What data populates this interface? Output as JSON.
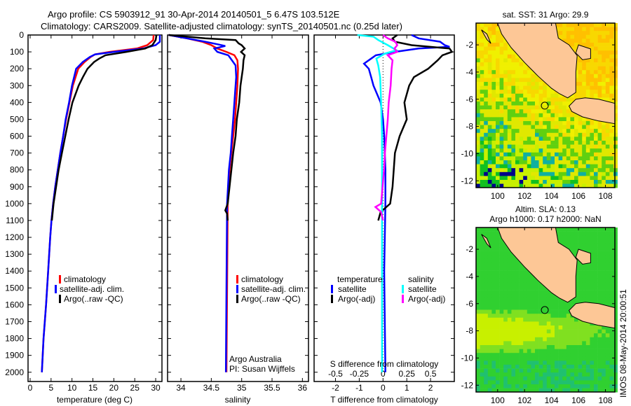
{
  "title": {
    "line1": "Argo profile: CS 5903912_91 30-Apr-2014 20140501_5 6.47S 103.512E",
    "line2": "Climatology: CARS2009. Satellite-adjusted climatology: synTS_20140501.nc (0.25d later)"
  },
  "colors": {
    "climatology": "#ff0000",
    "satellite": "#0000ff",
    "argo": "#000000",
    "sal_sat": "#00ffff",
    "sal_argo": "#ff00ff",
    "land": "#fdc796"
  },
  "chart_data": [
    {
      "type": "line",
      "id": "temperature",
      "xlabel": "temperature (deg C)",
      "ylabel": "",
      "xlim": [
        -0.5,
        31.5
      ],
      "ylim": [
        2055,
        0
      ],
      "xticks": [
        "0",
        "5",
        "10",
        "15",
        "20",
        "25",
        "30"
      ],
      "xtick_values": [
        0,
        5,
        10,
        15,
        20,
        25,
        30
      ],
      "yticks": [
        "0",
        "100",
        "200",
        "300",
        "400",
        "500",
        "600",
        "700",
        "800",
        "900",
        "1000",
        "1100",
        "1200",
        "1300",
        "1400",
        "1500",
        "1600",
        "1700",
        "1800",
        "1900",
        "2000"
      ],
      "legend": [
        "climatology",
        "satellite-adj. clim.",
        "Argo(..raw -QC)"
      ],
      "series": [
        {
          "name": "climatology",
          "color": "#ff0000",
          "depth": [
            0,
            30,
            60,
            80,
            100,
            115,
            130,
            160,
            200,
            300,
            400,
            500,
            600,
            700,
            800,
            900,
            1000,
            1100,
            1200,
            1400,
            1600,
            1800,
            2000
          ],
          "values": [
            29.5,
            29.4,
            28,
            25.5,
            19,
            15.5,
            14.5,
            13,
            11.5,
            10.2,
            9.4,
            8.6,
            7.9,
            7.2,
            6.6,
            6,
            5.5,
            5.1,
            4.8,
            4.3,
            3.8,
            3.2,
            2.8
          ]
        },
        {
          "name": "satellite-adj. clim.",
          "color": "#0000ff",
          "depth": [
            0,
            40,
            60,
            80,
            100,
            115,
            130,
            160,
            200,
            300,
            400,
            500,
            600,
            700,
            800,
            900,
            1000,
            1100,
            1200,
            1400,
            1600,
            1800,
            2000
          ],
          "values": [
            31,
            31,
            30,
            27,
            20,
            15.5,
            14.3,
            12.6,
            11,
            10,
            9.3,
            8.5,
            7.9,
            7.2,
            6.6,
            6,
            5.5,
            5.1,
            4.8,
            4.3,
            3.8,
            3.2,
            2.8
          ]
        },
        {
          "name": "Argo(..raw -QC)",
          "color": "#000000",
          "depth": [
            0,
            30,
            60,
            80,
            100,
            120,
            140,
            160,
            200,
            250,
            300,
            400,
            500,
            600,
            700,
            800,
            900,
            1000,
            1100
          ],
          "values": [
            30.2,
            30,
            29.2,
            27.5,
            23,
            18,
            16.5,
            15.3,
            13.7,
            12.6,
            11.6,
            10.1,
            9.2,
            8.4,
            7.6,
            6.8,
            6.2,
            5.6,
            5.2
          ]
        }
      ]
    },
    {
      "type": "line",
      "id": "salinity",
      "xlabel": "salinity",
      "xlim": [
        33.78,
        36.1
      ],
      "ylim": [
        2055,
        0
      ],
      "xticks": [
        "34",
        "34.5",
        "35",
        "35.5",
        "36"
      ],
      "xtick_values": [
        34,
        34.5,
        35,
        35.5,
        36
      ],
      "legend": [
        "climatology",
        "satellite-adj. clim.",
        "Argo(..raw -QC)"
      ],
      "annotation": [
        "Argo Australia",
        "PI: Susan Wijffels"
      ],
      "series": [
        {
          "name": "climatology",
          "color": "#ff0000",
          "depth": [
            0,
            20,
            40,
            60,
            80,
            100,
            120,
            150,
            200,
            300,
            400,
            500,
            600,
            700,
            800,
            1000,
            1500,
            2000
          ],
          "values": [
            33.8,
            34.1,
            34.35,
            34.5,
            34.6,
            34.75,
            34.88,
            34.93,
            34.94,
            34.93,
            34.91,
            34.89,
            34.86,
            34.83,
            34.8,
            34.77,
            34.76,
            34.75
          ]
        },
        {
          "name": "satellite-adj. clim.",
          "color": "#0000ff",
          "depth": [
            0,
            20,
            40,
            55,
            65,
            80,
            100,
            120,
            150,
            180,
            250,
            300,
            400,
            500,
            600,
            700,
            800,
            1000,
            1500,
            2000
          ],
          "values": [
            33.8,
            34.1,
            34.4,
            34.6,
            34.73,
            34.55,
            34.6,
            34.78,
            34.84,
            34.9,
            34.91,
            34.9,
            34.88,
            34.86,
            34.84,
            34.82,
            34.79,
            34.76,
            34.75,
            34.74
          ]
        },
        {
          "name": "Argo(..raw -QC)",
          "color": "#000000",
          "depth": [
            0,
            10,
            20,
            30,
            50,
            60,
            80,
            100,
            120,
            150,
            200,
            250,
            300,
            400,
            500,
            600,
            700,
            800,
            900,
            1000,
            1040,
            1060,
            1100
          ],
          "values": [
            33.8,
            34.1,
            34.4,
            34.9,
            34.95,
            35.0,
            35.05,
            34.99,
            35.05,
            35.03,
            35.02,
            35.0,
            34.98,
            34.96,
            34.92,
            34.9,
            34.86,
            34.83,
            34.8,
            34.77,
            34.73,
            34.76,
            34.77
          ]
        }
      ]
    },
    {
      "type": "line",
      "id": "difference",
      "xlabel": "T difference from climatology",
      "x2label": "S difference from climatology",
      "xlim": [
        -2.9,
        3.0
      ],
      "ylim": [
        2055,
        0
      ],
      "xticks": [
        "-2",
        "-1",
        "0",
        "1",
        "2"
      ],
      "xtick_values": [
        -2,
        -1,
        0,
        1,
        2
      ],
      "x2ticks": [
        "-0.5",
        "-0.25",
        "0",
        "0.25",
        "0.5"
      ],
      "x2tick_values": [
        -0.5,
        -0.25,
        0,
        0.25,
        0.5
      ],
      "legend_t_title": "temperature",
      "legend_s_title": "salinity",
      "legend": [
        "satellite",
        "Argo(-adj)",
        "satellite",
        "Argo(-adj)"
      ],
      "series": [
        {
          "name": "T satellite",
          "color": "#0000ff",
          "quantity": "T",
          "depth": [
            0,
            20,
            40,
            60,
            70,
            80,
            100,
            120,
            140,
            170,
            200,
            250,
            300,
            400,
            500,
            600,
            800,
            1000,
            1400,
            2000
          ],
          "values": [
            1.2,
            1.5,
            2.4,
            2.6,
            2.8,
            1.5,
            0.5,
            -0.3,
            -0.5,
            -0.8,
            -0.6,
            -0.5,
            -0.4,
            -0.1,
            0,
            0.05,
            0.1,
            0.1,
            0.05,
            0.1
          ]
        },
        {
          "name": "T Argo(-adj)",
          "color": "#000000",
          "quantity": "T",
          "depth": [
            0,
            20,
            40,
            60,
            80,
            100,
            120,
            150,
            200,
            250,
            300,
            400,
            500,
            600,
            700,
            800,
            900,
            1000,
            1050,
            1100
          ],
          "values": [
            0.6,
            0.4,
            0.5,
            1.2,
            2.8,
            2.9,
            2.5,
            2.3,
            1.9,
            1.3,
            1.1,
            0.9,
            1.0,
            0.7,
            0.5,
            0.45,
            0.4,
            0.3,
            -0.1,
            -0.2
          ]
        },
        {
          "name": "S satellite",
          "color": "#00ffff",
          "quantity": "S",
          "depth": [
            0,
            10,
            30,
            60,
            90,
            110,
            140,
            180,
            250,
            400,
            600,
            1000,
            1500,
            2000
          ],
          "values": [
            -0.27,
            -0.1,
            -0.05,
            0.05,
            0.14,
            0.02,
            -0.07,
            -0.05,
            -0.03,
            -0.02,
            -0.01,
            -0.01,
            -0.01,
            -0.01
          ]
        },
        {
          "name": "S Argo(-adj)",
          "color": "#ff00ff",
          "quantity": "S",
          "depth": [
            0,
            20,
            40,
            60,
            80,
            100,
            120,
            150,
            200,
            300,
            400,
            500,
            700,
            800,
            1000,
            1020,
            1050,
            1100
          ],
          "values": [
            0.0,
            0.05,
            0.13,
            0.15,
            0.12,
            0.15,
            0.05,
            0.1,
            0.09,
            0.08,
            0.06,
            0.05,
            0.02,
            0.01,
            -0.02,
            -0.08,
            -0.02,
            0
          ]
        }
      ]
    }
  ],
  "maps": {
    "top_title": "sat. SST: 31 Argo: 29.9",
    "bottom_title_1": "Altim. SLA: 0.13",
    "bottom_title_2": "Argo h1000: 0.17 h2000: NaN",
    "lon_ticks": [
      "100",
      "102",
      "104",
      "106",
      "108"
    ],
    "lon_values": [
      100,
      102,
      104,
      106,
      108
    ],
    "lat_ticks": [
      "-2",
      "-4",
      "-6",
      "-8",
      "-10",
      "-12"
    ],
    "lat_values": [
      -2,
      -4,
      -6,
      -8,
      -10,
      -12
    ],
    "lon_range": [
      98.4,
      108.7
    ],
    "lat_range": [
      -0.4,
      -12.5
    ],
    "float_position": {
      "lon": 103.5,
      "lat": -6.47
    }
  },
  "footer": "IMOS 08-May-2014 20:00:51"
}
